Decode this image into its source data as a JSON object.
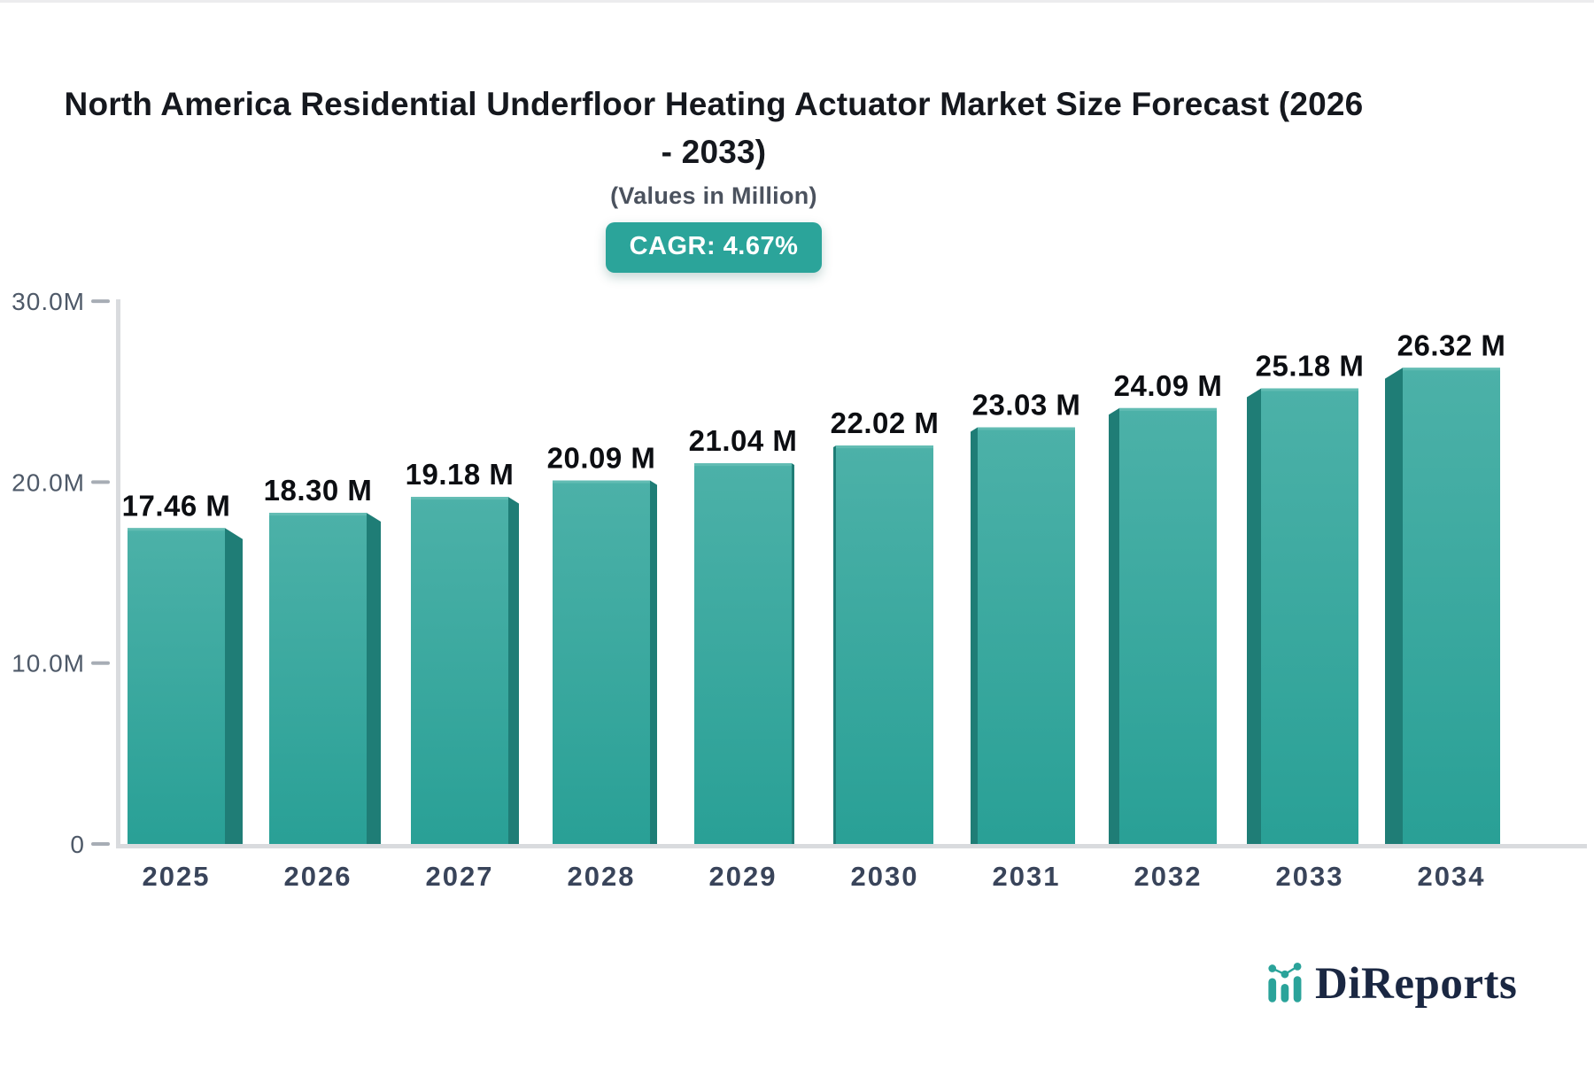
{
  "header": {
    "title_line1": "North America Residential Underfloor Heating Actuator Market Size Forecast (2026",
    "title_line2": "- 2033)",
    "subtitle": "(Values in Million)",
    "cagr_badge": "CAGR: 4.67%",
    "badge_bg": "#2ba49a"
  },
  "chart_data": {
    "type": "bar",
    "title": "North America Residential Underfloor Heating Actuator Market Size Forecast (2026 - 2033)",
    "subtitle": "(Values in Million)",
    "cagr": "4.67%",
    "categories": [
      "2025",
      "2026",
      "2027",
      "2028",
      "2029",
      "2030",
      "2031",
      "2032",
      "2033",
      "2034"
    ],
    "values": [
      17.46,
      18.3,
      19.18,
      20.09,
      21.04,
      22.02,
      23.03,
      24.09,
      25.18,
      26.32
    ],
    "value_labels": [
      "17.46 M",
      "18.30 M",
      "19.18 M",
      "20.09 M",
      "21.04 M",
      "22.02 M",
      "23.03 M",
      "24.09 M",
      "25.18 M",
      "26.32 M"
    ],
    "xlabel": "",
    "ylabel": "",
    "ylim": [
      0,
      30
    ],
    "yticks": [
      {
        "value": 30,
        "label": "30.0M"
      },
      {
        "value": 20,
        "label": "20.0M"
      },
      {
        "value": 10,
        "label": "10.0M"
      },
      {
        "value": 0,
        "label": "0"
      }
    ],
    "grid": false,
    "legend": false,
    "colors": {
      "bar_top": "#4cb1a8",
      "bar_bottom": "#29a096",
      "bar_side": "#1f7d76",
      "bar_top_edge": "#62bcb3",
      "axis_line": "#d9dbde",
      "tick_mark": "#a7adb5",
      "ytick_label": "#4e5968",
      "xtick_label": "#39445a",
      "value_label": "#0c0e12"
    }
  },
  "logo": {
    "text": "DiReports",
    "icon": "bar-chart-logo-icon",
    "text_color": "#1a2742",
    "accent_color": "#2aa39a"
  }
}
